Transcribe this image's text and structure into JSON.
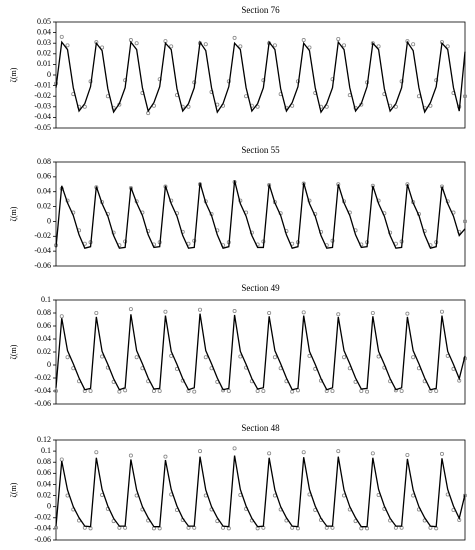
{
  "chart_data": [
    {
      "type": "line",
      "title": "Section 76",
      "y_label": "ζ(m)",
      "x": [
        0,
        1,
        2,
        3,
        4,
        5,
        6,
        7,
        8,
        9,
        10,
        11,
        12,
        13,
        14,
        15,
        16,
        17,
        18,
        19,
        20,
        21,
        22,
        23,
        24,
        25,
        26,
        27,
        28,
        29,
        30,
        31,
        32,
        33,
        34,
        35,
        36,
        37,
        38,
        39,
        40,
        41,
        42,
        43,
        44,
        45,
        46,
        47,
        48,
        49,
        50,
        51,
        52,
        53,
        54,
        55,
        56,
        57,
        58,
        59,
        60,
        61,
        62,
        63,
        64,
        65,
        66,
        67,
        68,
        69,
        70,
        71
      ],
      "xlim": [
        0,
        71
      ],
      "ylim": [
        -0.05,
        0.05
      ],
      "yticks": [
        -0.05,
        -0.04,
        -0.03,
        -0.02,
        -0.01,
        0,
        0.01,
        0.02,
        0.03,
        0.04,
        0.05
      ],
      "series": [
        {
          "mode": "markers",
          "color": "#888888",
          "values": [
            -0.008,
            0.036,
            0.028,
            -0.018,
            -0.03,
            -0.03,
            -0.006,
            0.031,
            0.026,
            -0.02,
            -0.031,
            -0.028,
            -0.005,
            0.033,
            0.03,
            -0.017,
            -0.036,
            -0.029,
            -0.004,
            0.032,
            0.027,
            -0.019,
            -0.03,
            -0.03,
            -0.007,
            0.03,
            0.029,
            -0.016,
            -0.028,
            -0.029,
            -0.006,
            0.035,
            0.027,
            -0.02,
            -0.029,
            -0.03,
            -0.005,
            0.03,
            0.028,
            -0.018,
            -0.031,
            -0.029,
            -0.006,
            0.033,
            0.026,
            -0.017,
            -0.03,
            -0.03,
            -0.004,
            0.034,
            0.028,
            -0.019,
            -0.031,
            -0.028,
            -0.007,
            0.03,
            0.027,
            -0.018,
            -0.029,
            -0.03,
            -0.006,
            0.032,
            0.029,
            -0.02,
            -0.031,
            -0.029,
            -0.005,
            0.031,
            0.027,
            -0.017,
            -0.03,
            -0.02
          ]
        },
        {
          "mode": "line",
          "color": "#000000",
          "values": [
            -0.012,
            0.031,
            0.024,
            -0.012,
            -0.034,
            -0.027,
            -0.011,
            0.03,
            0.023,
            -0.013,
            -0.035,
            -0.027,
            -0.012,
            0.031,
            0.024,
            -0.012,
            -0.034,
            -0.026,
            -0.011,
            0.03,
            0.024,
            -0.013,
            -0.034,
            -0.027,
            -0.012,
            0.031,
            0.023,
            -0.012,
            -0.035,
            -0.027,
            -0.011,
            0.03,
            0.024,
            -0.012,
            -0.034,
            -0.027,
            -0.012,
            0.031,
            0.024,
            -0.013,
            -0.034,
            -0.026,
            -0.011,
            0.03,
            0.023,
            -0.012,
            -0.035,
            -0.027,
            -0.012,
            0.031,
            0.024,
            -0.012,
            -0.034,
            -0.027,
            -0.011,
            0.03,
            0.024,
            -0.013,
            -0.034,
            -0.027,
            -0.012,
            0.031,
            0.023,
            -0.012,
            -0.035,
            -0.026,
            -0.011,
            0.03,
            0.024,
            -0.012,
            -0.034,
            0.022
          ]
        }
      ]
    },
    {
      "type": "line",
      "title": "Section 55",
      "y_label": "ζ(m)",
      "x": [
        0,
        1,
        2,
        3,
        4,
        5,
        6,
        7,
        8,
        9,
        10,
        11,
        12,
        13,
        14,
        15,
        16,
        17,
        18,
        19,
        20,
        21,
        22,
        23,
        24,
        25,
        26,
        27,
        28,
        29,
        30,
        31,
        32,
        33,
        34,
        35,
        36,
        37,
        38,
        39,
        40,
        41,
        42,
        43,
        44,
        45,
        46,
        47,
        48,
        49,
        50,
        51,
        52,
        53,
        54,
        55,
        56,
        57,
        58,
        59,
        60,
        61,
        62,
        63,
        64,
        65,
        66,
        67,
        68,
        69,
        70,
        71
      ],
      "xlim": [
        0,
        71
      ],
      "ylim": [
        -0.06,
        0.08
      ],
      "yticks": [
        -0.06,
        -0.04,
        -0.02,
        0,
        0.02,
        0.04,
        0.06,
        0.08
      ],
      "series": [
        {
          "mode": "markers",
          "color": "#888888",
          "values": [
            -0.032,
            0.044,
            0.028,
            0.012,
            -0.012,
            -0.03,
            -0.028,
            0.046,
            0.026,
            0.01,
            -0.015,
            -0.032,
            -0.027,
            0.045,
            0.027,
            0.012,
            -0.013,
            -0.031,
            -0.028,
            0.047,
            0.028,
            0.011,
            -0.014,
            -0.03,
            -0.026,
            0.05,
            0.027,
            0.01,
            -0.012,
            -0.032,
            -0.028,
            0.053,
            0.028,
            0.012,
            -0.015,
            -0.031,
            -0.027,
            0.049,
            0.026,
            0.011,
            -0.013,
            -0.03,
            -0.028,
            0.051,
            0.028,
            0.01,
            -0.014,
            -0.032,
            -0.026,
            0.05,
            0.027,
            0.012,
            -0.012,
            -0.031,
            -0.028,
            0.048,
            0.028,
            0.011,
            -0.015,
            -0.03,
            -0.027,
            0.05,
            0.026,
            0.01,
            -0.013,
            -0.032,
            -0.028,
            0.047,
            0.027,
            0.012,
            -0.014,
            0.0
          ]
        },
        {
          "mode": "line",
          "color": "#000000",
          "values": [
            -0.035,
            0.048,
            0.025,
            0.008,
            -0.018,
            -0.036,
            -0.034,
            0.047,
            0.024,
            0.007,
            -0.019,
            -0.036,
            -0.035,
            0.046,
            0.025,
            0.008,
            -0.018,
            -0.035,
            -0.034,
            0.048,
            0.024,
            0.007,
            -0.019,
            -0.036,
            -0.035,
            0.052,
            0.025,
            0.008,
            -0.018,
            -0.036,
            -0.034,
            0.055,
            0.024,
            0.007,
            -0.019,
            -0.035,
            -0.035,
            0.05,
            0.025,
            0.008,
            -0.018,
            -0.036,
            -0.034,
            0.052,
            0.024,
            0.007,
            -0.019,
            -0.036,
            -0.035,
            0.05,
            0.025,
            0.008,
            -0.018,
            -0.035,
            -0.034,
            0.048,
            0.024,
            0.007,
            -0.019,
            -0.036,
            -0.035,
            0.05,
            0.025,
            0.008,
            -0.018,
            -0.036,
            -0.034,
            0.047,
            0.024,
            0.007,
            -0.019,
            -0.01
          ]
        }
      ]
    },
    {
      "type": "line",
      "title": "Section 49",
      "y_label": "ζ(m)",
      "x": [
        0,
        1,
        2,
        3,
        4,
        5,
        6,
        7,
        8,
        9,
        10,
        11,
        12,
        13,
        14,
        15,
        16,
        17,
        18,
        19,
        20,
        21,
        22,
        23,
        24,
        25,
        26,
        27,
        28,
        29,
        30,
        31,
        32,
        33,
        34,
        35,
        36,
        37,
        38,
        39,
        40,
        41,
        42,
        43,
        44,
        45,
        46,
        47,
        48,
        49,
        50,
        51,
        52,
        53,
        54,
        55,
        56,
        57,
        58,
        59,
        60,
        61,
        62,
        63,
        64,
        65,
        66,
        67,
        68,
        69,
        70,
        71
      ],
      "xlim": [
        0,
        71
      ],
      "ylim": [
        -0.06,
        0.1
      ],
      "yticks": [
        -0.06,
        -0.04,
        -0.02,
        0,
        0.02,
        0.04,
        0.06,
        0.08,
        0.1
      ],
      "series": [
        {
          "mode": "markers",
          "color": "#888888",
          "values": [
            -0.04,
            0.075,
            0.012,
            -0.005,
            -0.025,
            -0.04,
            -0.04,
            0.08,
            0.013,
            -0.004,
            -0.026,
            -0.041,
            -0.039,
            0.086,
            0.012,
            -0.005,
            -0.025,
            -0.04,
            -0.04,
            0.082,
            0.014,
            -0.006,
            -0.024,
            -0.04,
            -0.041,
            0.085,
            0.012,
            -0.005,
            -0.026,
            -0.039,
            -0.04,
            0.083,
            0.013,
            -0.004,
            -0.025,
            -0.04,
            -0.04,
            0.08,
            0.012,
            -0.005,
            -0.025,
            -0.041,
            -0.039,
            0.081,
            0.014,
            -0.006,
            -0.024,
            -0.04,
            -0.04,
            0.078,
            0.012,
            -0.005,
            -0.026,
            -0.04,
            -0.041,
            0.08,
            0.013,
            -0.004,
            -0.025,
            -0.039,
            -0.04,
            0.079,
            0.012,
            -0.005,
            -0.025,
            -0.04,
            -0.04,
            0.082,
            0.014,
            -0.006,
            -0.024,
            0.01
          ]
        },
        {
          "mode": "line",
          "color": "#000000",
          "values": [
            -0.035,
            0.072,
            0.022,
            0.002,
            -0.02,
            -0.038,
            -0.036,
            0.074,
            0.021,
            0.001,
            -0.021,
            -0.038,
            -0.035,
            0.078,
            0.022,
            0.002,
            -0.02,
            -0.037,
            -0.036,
            0.076,
            0.021,
            0.001,
            -0.021,
            -0.038,
            -0.035,
            0.079,
            0.022,
            0.002,
            -0.02,
            -0.038,
            -0.036,
            0.077,
            0.021,
            0.001,
            -0.021,
            -0.037,
            -0.035,
            0.075,
            0.022,
            0.002,
            -0.02,
            -0.038,
            -0.036,
            0.076,
            0.021,
            0.001,
            -0.021,
            -0.038,
            -0.035,
            0.074,
            0.022,
            0.002,
            -0.02,
            -0.037,
            -0.036,
            0.075,
            0.021,
            0.001,
            -0.021,
            -0.038,
            -0.035,
            0.074,
            0.022,
            0.002,
            -0.02,
            -0.038,
            -0.036,
            0.076,
            0.021,
            0.001,
            -0.021,
            0.014
          ]
        }
      ]
    },
    {
      "type": "line",
      "title": "Section 48",
      "y_label": "ζ(m)",
      "x": [
        0,
        1,
        2,
        3,
        4,
        5,
        6,
        7,
        8,
        9,
        10,
        11,
        12,
        13,
        14,
        15,
        16,
        17,
        18,
        19,
        20,
        21,
        22,
        23,
        24,
        25,
        26,
        27,
        28,
        29,
        30,
        31,
        32,
        33,
        34,
        35,
        36,
        37,
        38,
        39,
        40,
        41,
        42,
        43,
        44,
        45,
        46,
        47,
        48,
        49,
        50,
        51,
        52,
        53,
        54,
        55,
        56,
        57,
        58,
        59,
        60,
        61,
        62,
        63,
        64,
        65,
        66,
        67,
        68,
        69,
        70,
        71
      ],
      "xlim": [
        0,
        71
      ],
      "ylim": [
        -0.06,
        0.12
      ],
      "yticks": [
        -0.06,
        -0.04,
        -0.02,
        0,
        0.02,
        0.04,
        0.06,
        0.08,
        0.1,
        0.12
      ],
      "series": [
        {
          "mode": "markers",
          "color": "#888888",
          "values": [
            -0.038,
            0.085,
            0.02,
            -0.005,
            -0.025,
            -0.038,
            -0.039,
            0.098,
            0.021,
            -0.004,
            -0.026,
            -0.038,
            -0.038,
            0.092,
            0.02,
            -0.005,
            -0.025,
            -0.039,
            -0.039,
            0.09,
            0.022,
            -0.006,
            -0.024,
            -0.038,
            -0.038,
            0.1,
            0.02,
            -0.005,
            -0.026,
            -0.038,
            -0.039,
            0.105,
            0.021,
            -0.004,
            -0.025,
            -0.039,
            -0.038,
            0.096,
            0.02,
            -0.005,
            -0.025,
            -0.038,
            -0.039,
            0.098,
            0.022,
            -0.006,
            -0.024,
            -0.038,
            -0.038,
            0.1,
            0.02,
            -0.005,
            -0.026,
            -0.039,
            -0.039,
            0.096,
            0.021,
            -0.004,
            -0.025,
            -0.038,
            -0.038,
            0.093,
            0.02,
            -0.005,
            -0.025,
            -0.038,
            -0.039,
            0.095,
            0.022,
            -0.006,
            -0.024,
            0.02
          ]
        },
        {
          "mode": "line",
          "color": "#000000",
          "values": [
            -0.035,
            0.082,
            0.03,
            0.0,
            -0.02,
            -0.035,
            -0.036,
            0.088,
            0.031,
            0.001,
            -0.021,
            -0.035,
            -0.035,
            0.085,
            0.03,
            0.0,
            -0.02,
            -0.036,
            -0.036,
            0.084,
            0.031,
            0.001,
            -0.021,
            -0.035,
            -0.035,
            0.09,
            0.03,
            0.0,
            -0.02,
            -0.035,
            -0.036,
            0.092,
            0.031,
            0.001,
            -0.021,
            -0.036,
            -0.035,
            0.088,
            0.03,
            0.0,
            -0.02,
            -0.035,
            -0.036,
            0.089,
            0.031,
            0.001,
            -0.021,
            -0.035,
            -0.035,
            0.09,
            0.03,
            0.0,
            -0.02,
            -0.036,
            -0.036,
            0.088,
            0.031,
            0.001,
            -0.021,
            -0.035,
            -0.035,
            0.086,
            0.03,
            0.0,
            -0.02,
            -0.035,
            -0.036,
            0.087,
            0.031,
            0.001,
            -0.021,
            0.022
          ]
        }
      ]
    }
  ]
}
